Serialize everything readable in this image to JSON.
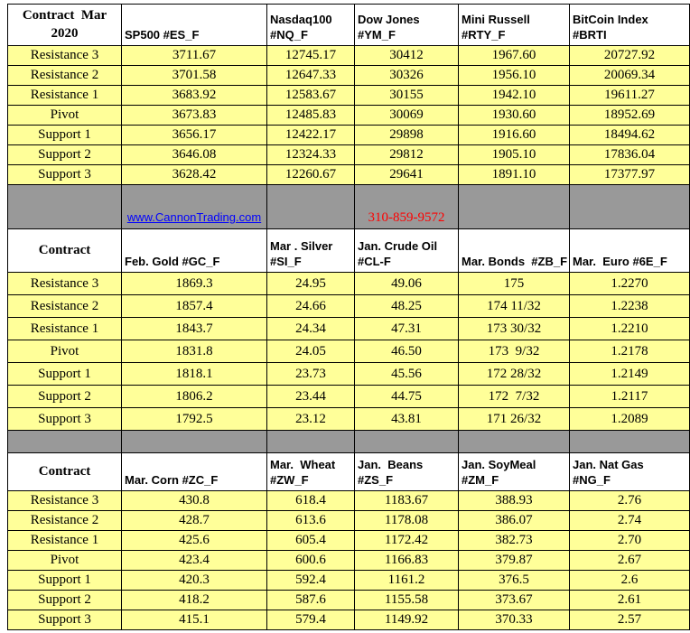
{
  "colors": {
    "header_bg": "#FFFFFF",
    "row_bg": "#FFFF99",
    "separator_bg": "#999999",
    "link": "#0000FF",
    "phone": "#FF0000",
    "border": "#000000"
  },
  "sections": [
    {
      "type": "table",
      "corner": "Contract  Mar\n2020",
      "headers": [
        "SP500 #ES_F",
        "Nasdaq100\n#NQ_F",
        "Dow Jones\n#YM_F",
        "Mini Russell\n#RTY_F",
        "BitCoin Index\n#BRTI"
      ],
      "rows": [
        {
          "label": "Resistance 3",
          "values": [
            "3711.67",
            "12745.17",
            "30412",
            "1967.60",
            "20727.92"
          ]
        },
        {
          "label": "Resistance 2",
          "values": [
            "3701.58",
            "12647.33",
            "30326",
            "1956.10",
            "20069.34"
          ]
        },
        {
          "label": "Resistance 1",
          "values": [
            "3683.92",
            "12583.67",
            "30155",
            "1942.10",
            "19611.27"
          ]
        },
        {
          "label": "Pivot",
          "values": [
            "3673.83",
            "12485.83",
            "30069",
            "1930.60",
            "18952.69"
          ]
        },
        {
          "label": "Support 1",
          "values": [
            "3656.17",
            "12422.17",
            "29898",
            "1916.60",
            "18494.62"
          ]
        },
        {
          "label": "Support 2",
          "values": [
            "3646.08",
            "12324.33",
            "29812",
            "1905.10",
            "17836.04"
          ]
        },
        {
          "label": "Support 3",
          "values": [
            "3628.42",
            "12260.67",
            "29641",
            "1891.10",
            "17377.97"
          ]
        }
      ]
    },
    {
      "type": "separator",
      "link": "www.CannonTrading.com",
      "phone": "310-859-9572"
    },
    {
      "type": "table",
      "corner": "Contract",
      "headers": [
        "Feb. Gold #GC_F",
        "Mar . Silver\n#SI_F",
        "Jan. Crude Oil\n#CL-F",
        "Mar. Bonds  #ZB_F",
        "Mar.  Euro #6E_F"
      ],
      "rows": [
        {
          "label": "Resistance 3",
          "values": [
            "1869.3",
            "24.95",
            "49.06",
            "175",
            "1.2270"
          ]
        },
        {
          "label": "Resistance 2",
          "values": [
            "1857.4",
            "24.66",
            "48.25",
            "174 11/32",
            "1.2238"
          ]
        },
        {
          "label": "Resistance 1",
          "values": [
            "1843.7",
            "24.34",
            "47.31",
            "173 30/32",
            "1.2210"
          ]
        },
        {
          "label": "Pivot",
          "values": [
            "1831.8",
            "24.05",
            "46.50",
            "173  9/32",
            "1.2178"
          ]
        },
        {
          "label": "Support 1",
          "values": [
            "1818.1",
            "23.73",
            "45.56",
            "172 28/32",
            "1.2149"
          ]
        },
        {
          "label": "Support 2",
          "values": [
            "1806.2",
            "23.44",
            "44.75",
            "172  7/32",
            "1.2117"
          ]
        },
        {
          "label": "Support 3",
          "values": [
            "1792.5",
            "23.12",
            "43.81",
            "171 26/32",
            "1.2089"
          ]
        }
      ]
    },
    {
      "type": "separator"
    },
    {
      "type": "table",
      "corner": "Contract",
      "headers": [
        "Mar. Corn #ZC_F",
        "Mar.  Wheat\n#ZW_F",
        "Jan.  Beans\n#ZS_F",
        "Jan. SoyMeal\n#ZM_F",
        "Jan. Nat Gas\n#NG_F"
      ],
      "rows": [
        {
          "label": "Resistance 3",
          "values": [
            "430.8",
            "618.4",
            "1183.67",
            "388.93",
            "2.76"
          ]
        },
        {
          "label": "Resistance 2",
          "values": [
            "428.7",
            "613.6",
            "1178.08",
            "386.07",
            "2.74"
          ]
        },
        {
          "label": "Resistance 1",
          "values": [
            "425.6",
            "605.4",
            "1172.42",
            "382.73",
            "2.70"
          ]
        },
        {
          "label": "Pivot",
          "values": [
            "423.4",
            "600.6",
            "1166.83",
            "379.87",
            "2.67"
          ]
        },
        {
          "label": "Support 1",
          "values": [
            "420.3",
            "592.4",
            "1161.2",
            "376.5",
            "2.6"
          ]
        },
        {
          "label": "Support 2",
          "values": [
            "418.2",
            "587.6",
            "1155.58",
            "373.67",
            "2.61"
          ]
        },
        {
          "label": "Support 3",
          "values": [
            "415.1",
            "579.4",
            "1149.92",
            "370.33",
            "2.57"
          ]
        }
      ]
    }
  ]
}
